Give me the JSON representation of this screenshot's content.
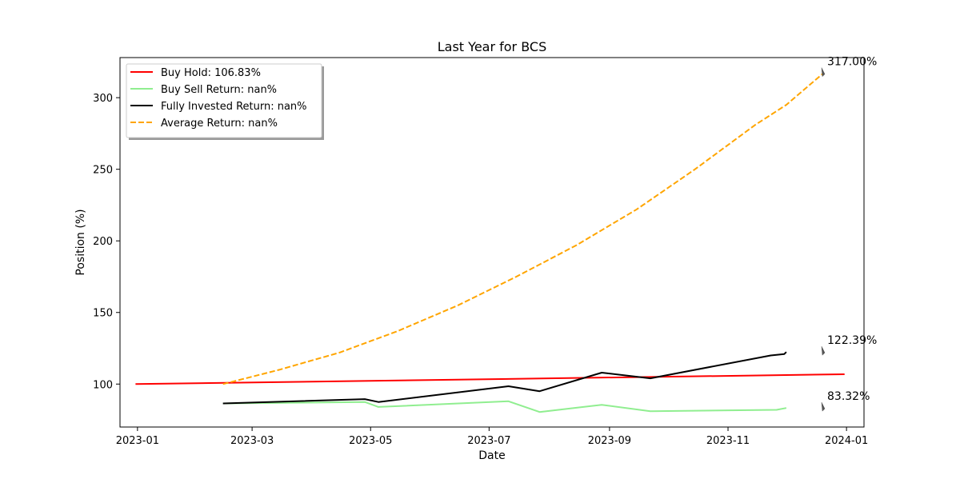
{
  "chart_data": {
    "type": "line",
    "title": "Last Year for BCS",
    "xlabel": "Date",
    "ylabel": "Position (%)",
    "x_ticks": [
      "2023-01",
      "2023-03",
      "2023-05",
      "2023-07",
      "2023-09",
      "2023-11",
      "2024-01"
    ],
    "y_ticks": [
      100,
      150,
      200,
      250,
      300
    ],
    "xlim": [
      "2022-12-23",
      "2024-01-10"
    ],
    "ylim": [
      70,
      328
    ],
    "grid": false,
    "legend_position": "top-left",
    "series": [
      {
        "name": "Buy Hold: 106.83%",
        "color": "#ff0000",
        "style": "solid",
        "points": [
          [
            "2022-12-31",
            100.0
          ],
          [
            "2023-12-31",
            106.83
          ]
        ]
      },
      {
        "name": "Buy Sell Return: nan%",
        "color": "#90ee90",
        "style": "solid",
        "points": [
          [
            "2023-02-14",
            86.5
          ],
          [
            "2023-04-28",
            87.5
          ],
          [
            "2023-05-05",
            84.0
          ],
          [
            "2023-07-11",
            88.0
          ],
          [
            "2023-07-27",
            80.5
          ],
          [
            "2023-08-28",
            85.5
          ],
          [
            "2023-09-22",
            81.0
          ],
          [
            "2023-11-26",
            82.0
          ],
          [
            "2023-12-01",
            83.3
          ]
        ]
      },
      {
        "name": "Fully Invested Return: nan%",
        "color": "#000000",
        "style": "solid",
        "points": [
          [
            "2023-02-14",
            86.5
          ],
          [
            "2023-04-28",
            89.5
          ],
          [
            "2023-05-05",
            87.5
          ],
          [
            "2023-07-11",
            98.5
          ],
          [
            "2023-07-27",
            95.0
          ],
          [
            "2023-08-28",
            108.0
          ],
          [
            "2023-09-22",
            104.0
          ],
          [
            "2023-11-23",
            120.0
          ],
          [
            "2023-11-30",
            121.0
          ],
          [
            "2023-12-01",
            122.4
          ]
        ]
      },
      {
        "name": "Average Return: nan%",
        "color": "#ffa500",
        "style": "dashed",
        "points": [
          [
            "2023-02-14",
            100.0
          ],
          [
            "2023-03-15",
            110.0
          ],
          [
            "2023-04-15",
            122.0
          ],
          [
            "2023-05-15",
            137.0
          ],
          [
            "2023-06-15",
            155.0
          ],
          [
            "2023-07-15",
            175.0
          ],
          [
            "2023-08-15",
            197.0
          ],
          [
            "2023-09-15",
            222.0
          ],
          [
            "2023-10-15",
            250.0
          ],
          [
            "2023-11-15",
            281.0
          ],
          [
            "2023-12-01",
            295.0
          ],
          [
            "2023-12-20",
            317.0
          ]
        ]
      }
    ],
    "annotations": [
      {
        "text": "317.00%",
        "date": "2023-12-20",
        "value": 317.0
      },
      {
        "text": "122.39%",
        "date": "2023-12-20",
        "value": 122.39
      },
      {
        "text": "83.32%",
        "date": "2023-12-20",
        "value": 83.32
      }
    ]
  }
}
